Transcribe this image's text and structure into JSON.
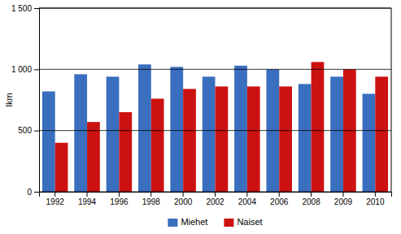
{
  "chart_data": {
    "type": "bar",
    "categories": [
      "1992",
      "1994",
      "1996",
      "1998",
      "2000",
      "2002",
      "2004",
      "2006",
      "2008",
      "2009",
      "2010"
    ],
    "series": [
      {
        "name": "Miehet",
        "color": "#3A6EBF",
        "values": [
          820,
          960,
          940,
          1040,
          1020,
          940,
          1030,
          1000,
          880,
          940,
          800
        ]
      },
      {
        "name": "Naiset",
        "color": "#CC1111",
        "values": [
          400,
          570,
          650,
          760,
          840,
          860,
          860,
          860,
          1060,
          1000,
          940
        ]
      }
    ],
    "ylabel": "lkm",
    "ylim": [
      0,
      1500
    ],
    "yticks": [
      0,
      500,
      {
        "value": 1000,
        "label": "1 000"
      },
      {
        "value": 1500,
        "label": "1 500"
      }
    ],
    "grid": true,
    "legend": "bottom"
  }
}
